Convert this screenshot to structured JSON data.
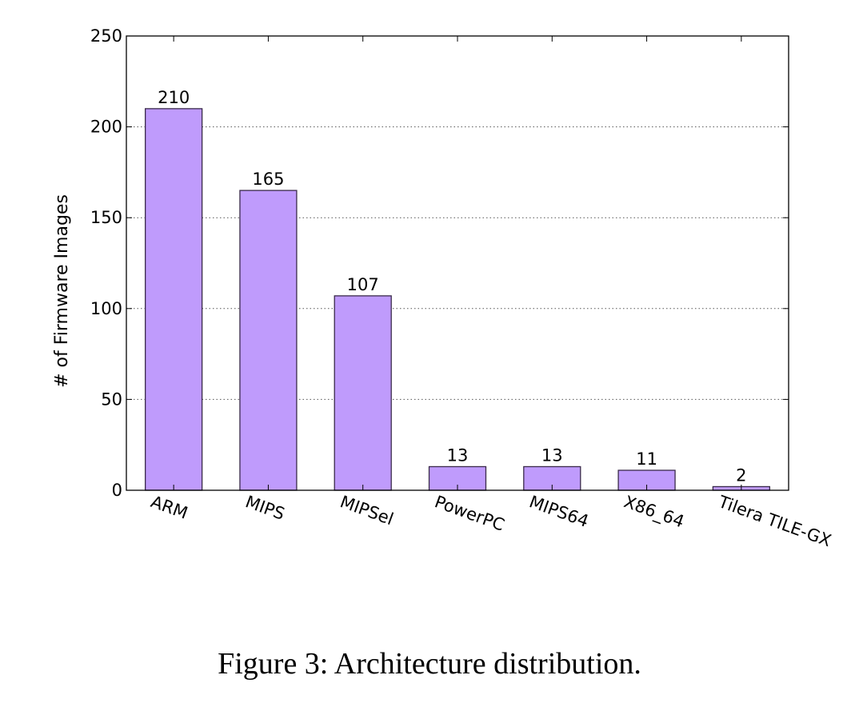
{
  "caption": "Figure 3: Architecture distribution.",
  "chart_data": {
    "type": "bar",
    "categories": [
      "ARM",
      "MIPS",
      "MIPSel",
      "PowerPC",
      "MIPS64",
      "X86_64",
      "Tilera TILE-GX"
    ],
    "values": [
      210,
      165,
      107,
      13,
      13,
      11,
      2
    ],
    "data_labels": [
      "210",
      "165",
      "107",
      "13",
      "13",
      "11",
      "2"
    ],
    "title": "",
    "xlabel": "",
    "ylabel": "# of Firmware Images",
    "ylim": [
      0,
      250
    ],
    "yticks": [
      0,
      50,
      100,
      150,
      200,
      250
    ],
    "grid": "horizontal dotted",
    "legend": "none",
    "bar_color": "#bf9bfc",
    "bar_edge_color": "#3a2a4a"
  }
}
